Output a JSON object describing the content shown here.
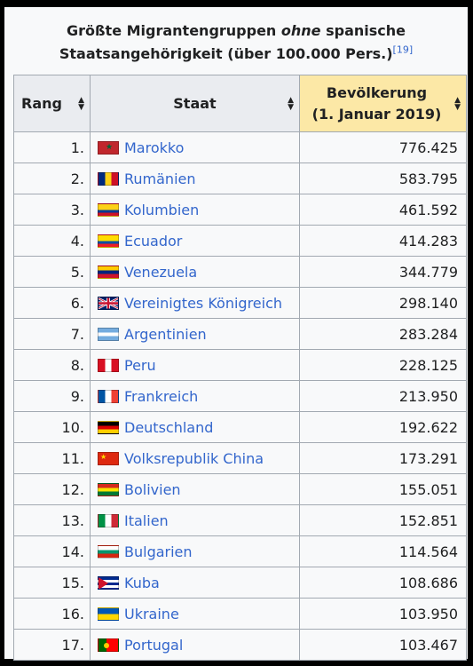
{
  "caption": {
    "line1_pre": "Größte Migrantengruppen ",
    "line1_italic": "ohne",
    "line1_post": " spanische",
    "line2": "Staatsangehörigkeit (über 100.000 Pers.)",
    "ref": "[19]"
  },
  "headers": {
    "rank": "Rang",
    "state": "Staat",
    "pop_line1": "Bevölkerung",
    "pop_line2": "(1. Januar 2019)"
  },
  "rows": [
    {
      "rank": "1.",
      "state": "Marokko",
      "pop": "776.425",
      "flag": "morocco-flag",
      "colors": [
        "#c1272d",
        "#006233"
      ]
    },
    {
      "rank": "2.",
      "state": "Rumänien",
      "pop": "583.795",
      "flag": "romania-flag",
      "colors": [
        "#002b7f",
        "#fcd116",
        "#ce1126"
      ]
    },
    {
      "rank": "3.",
      "state": "Kolumbien",
      "pop": "461.592",
      "flag": "colombia-flag",
      "colors": [
        "#fcd116",
        "#003893",
        "#ce1126"
      ]
    },
    {
      "rank": "4.",
      "state": "Ecuador",
      "pop": "414.283",
      "flag": "ecuador-flag",
      "colors": [
        "#ffdd00",
        "#034ea2",
        "#ed1c24"
      ]
    },
    {
      "rank": "5.",
      "state": "Venezuela",
      "pop": "344.779",
      "flag": "venezuela-flag",
      "colors": [
        "#ffcc00",
        "#00247d",
        "#cf142b"
      ]
    },
    {
      "rank": "6.",
      "state": "Vereinigtes Königreich",
      "pop": "298.140",
      "flag": "uk-flag",
      "colors": [
        "#012169",
        "#ffffff",
        "#c8102e"
      ]
    },
    {
      "rank": "7.",
      "state": "Argentinien",
      "pop": "283.284",
      "flag": "argentina-flag",
      "colors": [
        "#74acdf",
        "#ffffff",
        "#74acdf"
      ]
    },
    {
      "rank": "8.",
      "state": "Peru",
      "pop": "228.125",
      "flag": "peru-flag",
      "colors": [
        "#d91023",
        "#ffffff",
        "#d91023"
      ]
    },
    {
      "rank": "9.",
      "state": "Frankreich",
      "pop": "213.950",
      "flag": "france-flag",
      "colors": [
        "#0055a4",
        "#ffffff",
        "#ef4135"
      ]
    },
    {
      "rank": "10.",
      "state": "Deutschland",
      "pop": "192.622",
      "flag": "germany-flag",
      "colors": [
        "#000000",
        "#dd0000",
        "#ffce00"
      ]
    },
    {
      "rank": "11.",
      "state": "Volksrepublik China",
      "pop": "173.291",
      "flag": "china-flag",
      "colors": [
        "#de2910",
        "#ffde00"
      ]
    },
    {
      "rank": "12.",
      "state": "Bolivien",
      "pop": "155.051",
      "flag": "bolivia-flag",
      "colors": [
        "#d52b1e",
        "#f9e300",
        "#007934"
      ]
    },
    {
      "rank": "13.",
      "state": "Italien",
      "pop": "152.851",
      "flag": "italy-flag",
      "colors": [
        "#009246",
        "#ffffff",
        "#ce2b37"
      ]
    },
    {
      "rank": "14.",
      "state": "Bulgarien",
      "pop": "114.564",
      "flag": "bulgaria-flag",
      "colors": [
        "#ffffff",
        "#00966e",
        "#d62612"
      ]
    },
    {
      "rank": "15.",
      "state": "Kuba",
      "pop": "108.686",
      "flag": "cuba-flag",
      "colors": [
        "#002a8f",
        "#ffffff",
        "#cf142b"
      ]
    },
    {
      "rank": "16.",
      "state": "Ukraine",
      "pop": "103.950",
      "flag": "ukraine-flag",
      "colors": [
        "#0057b7",
        "#ffd700"
      ]
    },
    {
      "rank": "17.",
      "state": "Portugal",
      "pop": "103.467",
      "flag": "portugal-flag",
      "colors": [
        "#006600",
        "#ff0000",
        "#ffcc00"
      ]
    }
  ]
}
